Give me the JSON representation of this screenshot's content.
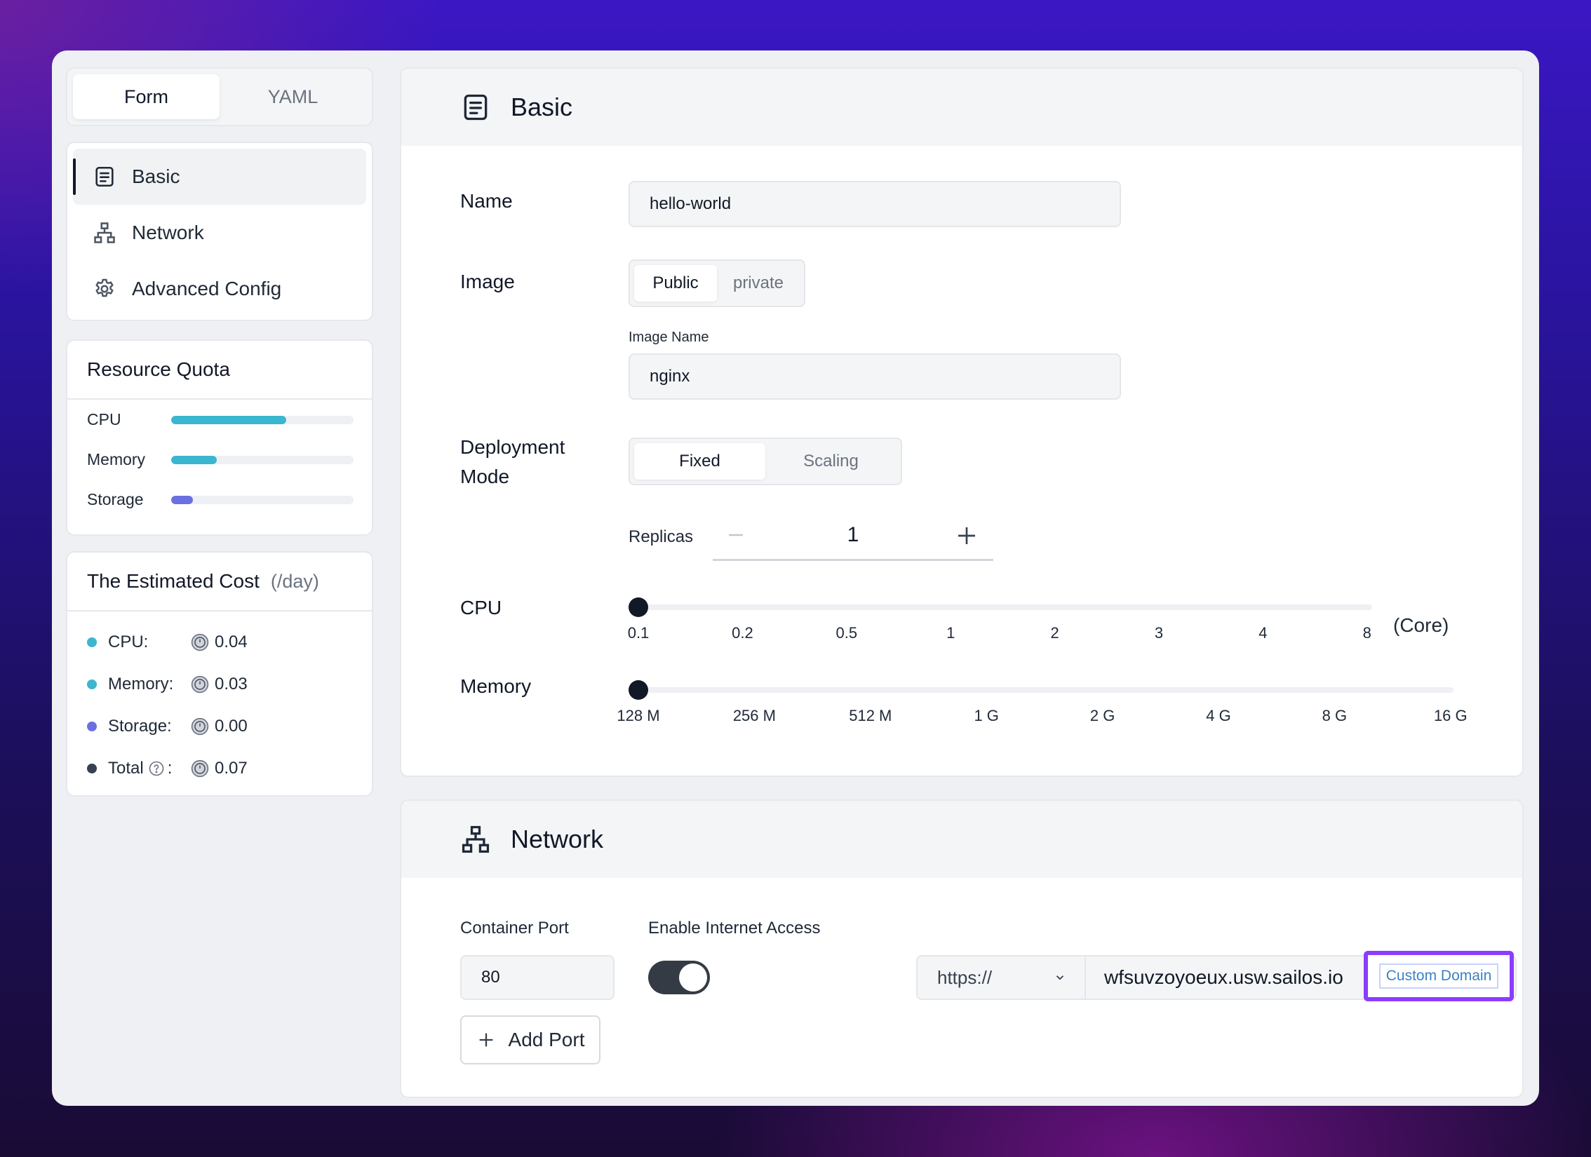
{
  "view_tabs": [
    {
      "label": "Form",
      "active": true
    },
    {
      "label": "YAML",
      "active": false
    }
  ],
  "nav": [
    {
      "label": "Basic",
      "icon": "document-icon",
      "active": true
    },
    {
      "label": "Network",
      "icon": "network-icon",
      "active": false
    },
    {
      "label": "Advanced Config",
      "icon": "gear-icon",
      "active": false
    }
  ],
  "quota": {
    "title": "Resource Quota",
    "items": [
      {
        "label": "CPU",
        "fraction": 0.63,
        "color": "#3bb6cf"
      },
      {
        "label": "Memory",
        "fraction": 0.25,
        "color": "#3bb6cf"
      },
      {
        "label": "Storage",
        "fraction": 0.12,
        "color": "#6b6fe0"
      }
    ]
  },
  "cost": {
    "title": "The Estimated Cost",
    "unit": "(/day)",
    "items": [
      {
        "label": "CPU:",
        "value": "0.04",
        "color": "#3bb6cf"
      },
      {
        "label": "Memory:",
        "value": "0.03",
        "color": "#3bb6cf"
      },
      {
        "label": "Storage:",
        "value": "0.00",
        "color": "#6b6fe0"
      },
      {
        "label": "Total",
        "suffix": ":",
        "value": "0.07",
        "color": "#374151"
      }
    ]
  },
  "basic": {
    "title": "Basic",
    "name_label": "Name",
    "name_value": "hello-world",
    "image_label": "Image",
    "image_options": [
      {
        "label": "Public",
        "active": true
      },
      {
        "label": "private",
        "active": false
      }
    ],
    "image_name_label": "Image Name",
    "image_name_value": "nginx",
    "deploy_label_1": "Deployment",
    "deploy_label_2": "Mode",
    "deploy_options": [
      {
        "label": "Fixed",
        "active": true
      },
      {
        "label": "Scaling",
        "active": false
      }
    ],
    "replicas_label": "Replicas",
    "replicas_value": "1",
    "cpu_label": "CPU",
    "cpu_ticks": [
      "0.1",
      "0.2",
      "0.5",
      "1",
      "2",
      "3",
      "4",
      "8"
    ],
    "cpu_selected": "0.1",
    "cpu_unit": "(Core)",
    "memory_label": "Memory",
    "memory_ticks": [
      "128 M",
      "256 M",
      "512 M",
      "1 G",
      "2 G",
      "4 G",
      "8 G",
      "16 G"
    ],
    "memory_selected": "128 M"
  },
  "network": {
    "title": "Network",
    "container_port_label": "Container Port",
    "container_port_value": "80",
    "internet_label": "Enable Internet Access",
    "internet_enabled": true,
    "protocol": "https://",
    "host": "wfsuvzoyoeux.usw.sailos.io",
    "custom_domain_label": "Custom Domain",
    "add_port_label": "Add Port"
  }
}
